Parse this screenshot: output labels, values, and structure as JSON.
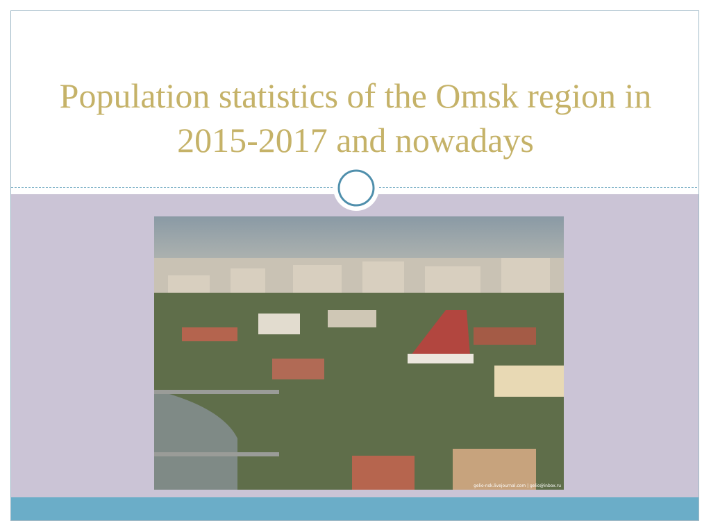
{
  "title": "Population statistics of the Omsk region in 2015-2017 and nowadays",
  "photo": {
    "credit": "gelio-nsk.livejournal.com | gelio@inbox.ru"
  }
}
